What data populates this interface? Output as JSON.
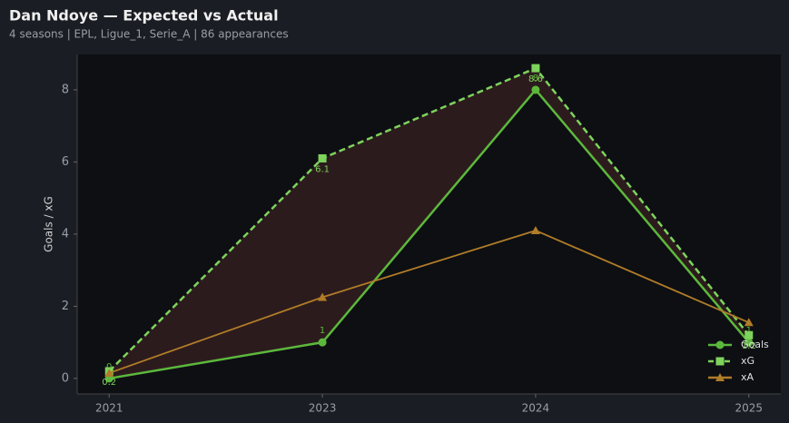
{
  "chart_data": {
    "type": "line",
    "title": "Dan Ndoye — Expected vs Actual",
    "subtitle": "4 seasons | EPL, Ligue_1, Serie_A | 86 appearances",
    "y_label": "Goals / xG",
    "categories": [
      "2021",
      "2023",
      "2024",
      "2025"
    ],
    "series": [
      {
        "name": "Goals",
        "color": "#5cb83c",
        "marker": "circle",
        "dashed": false,
        "labels": "above",
        "values": [
          0,
          1,
          8,
          1
        ]
      },
      {
        "name": "xG",
        "color": "#7ed35c",
        "marker": "square",
        "dashed": true,
        "labels": "below",
        "values": [
          0.2,
          6.1,
          8.6,
          1.2
        ]
      },
      {
        "name": "xA",
        "color": "#b07c28",
        "marker": "triangle",
        "dashed": false,
        "values": [
          0.15,
          2.25,
          4.1,
          1.55
        ]
      }
    ],
    "fill_between": {
      "color": "#2e1c1e"
    },
    "ylim": [
      -0.43,
      8.98
    ],
    "yticks": [
      0,
      2,
      4,
      6,
      8
    ],
    "legend": "lower right"
  }
}
